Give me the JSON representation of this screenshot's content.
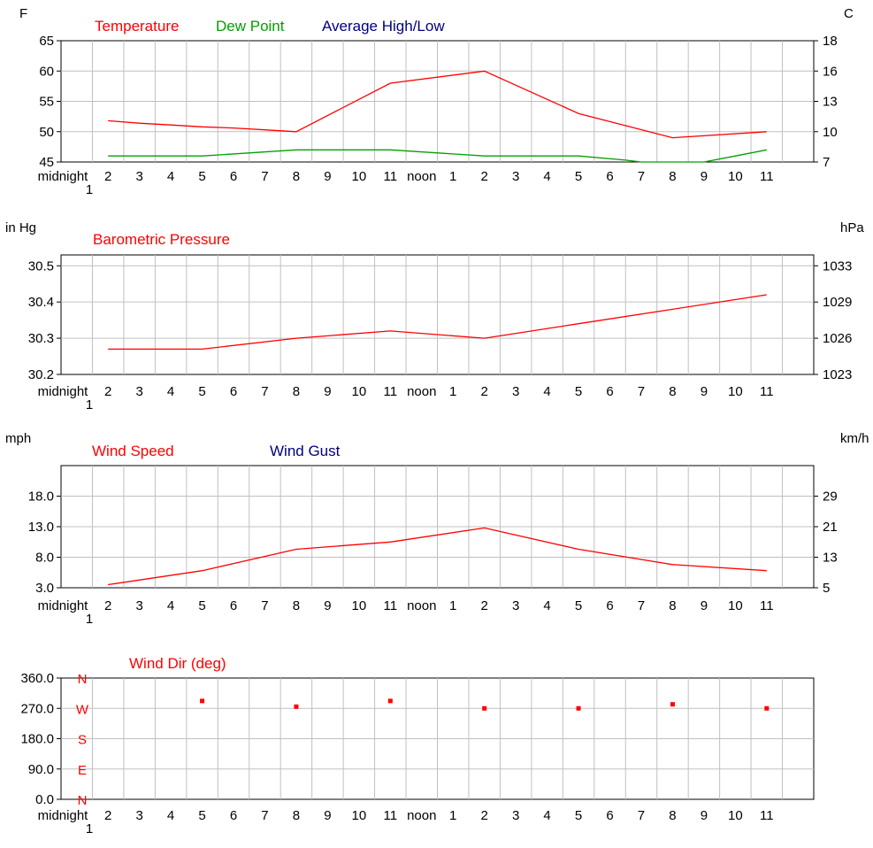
{
  "colors": {
    "temperature": "#ff0000",
    "dew_point": "#00a000",
    "average": "#000080",
    "grid": "#c0c0c0",
    "axis": "#000000"
  },
  "x_ticks": [
    "midnight",
    "2",
    "3",
    "4",
    "5",
    "6",
    "7",
    "8",
    "9",
    "10",
    "11",
    "noon",
    "1",
    "2",
    "3",
    "4",
    "5",
    "6",
    "7",
    "8",
    "9",
    "10",
    "11"
  ],
  "x_sublabel": "1",
  "chart_data": [
    {
      "type": "line",
      "left_unit": "F",
      "right_unit": "C",
      "legend": [
        "Temperature",
        "Dew Point",
        "Average High/Low"
      ],
      "ylim": [
        45,
        65
      ],
      "y_ticks": [
        "45",
        "50",
        "55",
        "60",
        "65"
      ],
      "right_ticks": [
        "7",
        "10",
        "13",
        "16",
        "18"
      ],
      "grid": true,
      "series": [
        {
          "name": "Temperature",
          "color": "#ff0000",
          "points": [
            [
              1,
              51.8
            ],
            [
              2,
              51.4
            ],
            [
              3,
              51.1
            ],
            [
              4,
              50.8
            ],
            [
              5,
              50.6
            ],
            [
              6,
              50.3
            ],
            [
              7,
              50.0
            ],
            [
              10,
              58.0
            ],
            [
              13,
              60.0
            ],
            [
              16,
              53.0
            ],
            [
              19,
              49.0
            ],
            [
              22,
              50.0
            ]
          ]
        },
        {
          "name": "Dew Point",
          "color": "#00a000",
          "points": [
            [
              1,
              46.0
            ],
            [
              4,
              46.0
            ],
            [
              7,
              47.0
            ],
            [
              10,
              47.0
            ],
            [
              13,
              46.0
            ],
            [
              16,
              46.0
            ],
            [
              17.5,
              45.3
            ],
            [
              18,
              45.0
            ],
            [
              20,
              45.0
            ],
            [
              21,
              46.0
            ],
            [
              22,
              47.0
            ]
          ]
        },
        {
          "name": "Average High/Low",
          "color": "#000080",
          "points": []
        }
      ]
    },
    {
      "type": "line",
      "left_unit": "in Hg",
      "right_unit": "hPa",
      "legend": [
        "Barometric Pressure"
      ],
      "ylim": [
        30.2,
        30.53
      ],
      "y_ticks": [
        "30.2",
        "30.3",
        "30.4",
        "30.5"
      ],
      "y_tick_values": [
        30.2,
        30.3,
        30.4,
        30.5
      ],
      "right_ticks": [
        "1023",
        "1026",
        "1029",
        "1033"
      ],
      "grid": true,
      "series": [
        {
          "name": "Barometric Pressure",
          "color": "#ff0000",
          "points": [
            [
              1,
              30.27
            ],
            [
              4,
              30.27
            ],
            [
              7,
              30.3
            ],
            [
              10,
              30.32
            ],
            [
              13,
              30.3
            ],
            [
              16,
              30.34
            ],
            [
              19,
              30.38
            ],
            [
              22,
              30.42
            ]
          ]
        }
      ]
    },
    {
      "type": "line",
      "left_unit": "mph",
      "right_unit": "km/h",
      "legend": [
        "Wind Speed",
        "Wind Gust"
      ],
      "ylim": [
        3.0,
        23.0
      ],
      "y_ticks": [
        "3.0",
        "8.0",
        "13.0",
        "18.0"
      ],
      "y_tick_values": [
        3.0,
        8.0,
        13.0,
        18.0
      ],
      "right_ticks": [
        "5",
        "13",
        "21",
        "29"
      ],
      "grid": true,
      "series": [
        {
          "name": "Wind Speed",
          "color": "#ff0000",
          "points": [
            [
              1,
              3.5
            ],
            [
              4,
              5.8
            ],
            [
              7,
              9.3
            ],
            [
              10,
              10.5
            ],
            [
              13,
              12.8
            ],
            [
              16,
              9.3
            ],
            [
              19,
              6.8
            ],
            [
              22,
              5.8
            ]
          ]
        },
        {
          "name": "Wind Gust",
          "color": "#000080",
          "points": []
        }
      ]
    },
    {
      "type": "scatter",
      "legend": [
        "Wind Dir (deg)"
      ],
      "ylim": [
        0,
        360
      ],
      "y_ticks": [
        "0.0",
        "90.0",
        "180.0",
        "270.0",
        "360.0"
      ],
      "compass": [
        "N",
        "E",
        "S",
        "W",
        "N"
      ],
      "grid": true,
      "series": [
        {
          "name": "Wind Dir (deg)",
          "color": "#ff0000",
          "points": [
            [
              4,
              292
            ],
            [
              7,
              275
            ],
            [
              10,
              292
            ],
            [
              13,
              270
            ],
            [
              16,
              270
            ],
            [
              19,
              282
            ],
            [
              22,
              270
            ]
          ]
        }
      ]
    }
  ]
}
